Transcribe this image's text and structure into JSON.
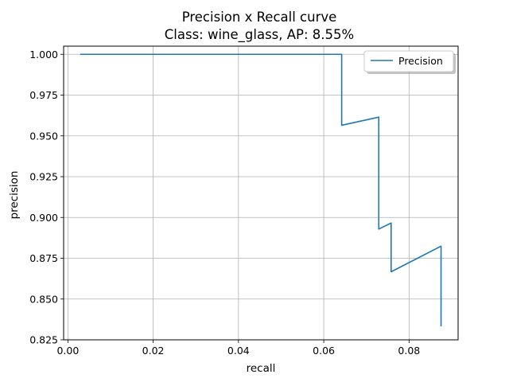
{
  "chart_data": {
    "type": "line",
    "title_line1": "Precision x Recall curve",
    "title_line2": "Class: wine_glass, AP: 8.55%",
    "xlabel": "recall",
    "ylabel": "precision",
    "xlim": [
      -0.001,
      0.0915
    ],
    "ylim": [
      0.825,
      1.005
    ],
    "xticks": [
      0.0,
      0.02,
      0.04,
      0.06,
      0.08
    ],
    "xtick_labels": [
      "0.00",
      "0.02",
      "0.04",
      "0.06",
      "0.08"
    ],
    "yticks": [
      0.825,
      0.85,
      0.875,
      0.9,
      0.925,
      0.95,
      0.975,
      1.0
    ],
    "ytick_labels": [
      "0.825",
      "0.850",
      "0.875",
      "0.900",
      "0.925",
      "0.950",
      "0.975",
      "1.000"
    ],
    "grid": true,
    "legend_position": "top-right",
    "series": [
      {
        "name": "Precision",
        "color": "#1f77b4",
        "x": [
          0.0029,
          0.0642,
          0.0642,
          0.0729,
          0.0729,
          0.0758,
          0.0758,
          0.0875,
          0.0875
        ],
        "y": [
          1.0,
          1.0,
          0.9565,
          0.9615,
          0.8929,
          0.8966,
          0.8667,
          0.8824,
          0.8333
        ]
      }
    ]
  }
}
